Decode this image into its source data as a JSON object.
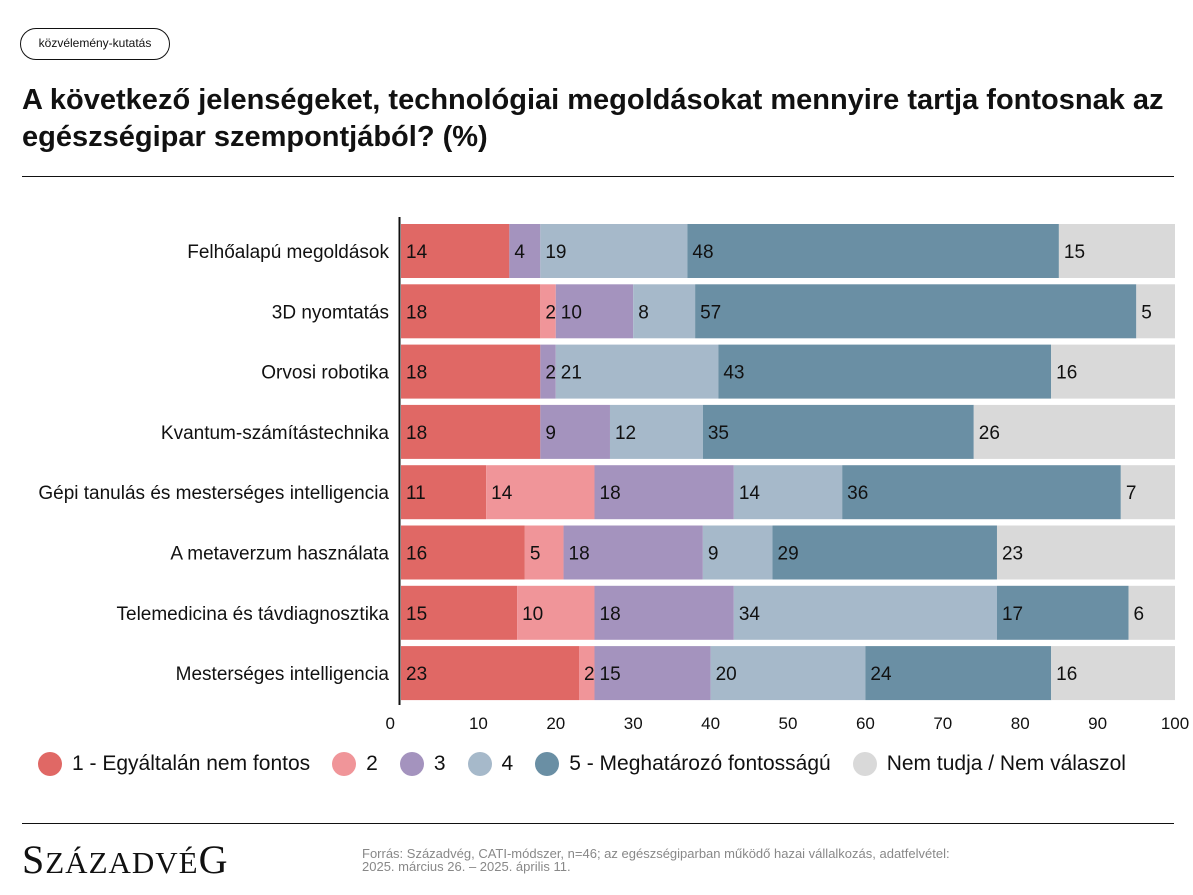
{
  "tag": "közvélemény-kutatás",
  "title": "A következő jelenségeket, technológiai megoldásokat mennyire tartja fontosnak az egészségipar szempontjából? (%)",
  "logo": {
    "first": "S",
    "middle": "ZÁZADVÉ",
    "last": "G"
  },
  "source": {
    "line1": "Forrás: Századvég, CATI-módszer, n=46; az egészségiparban működő hazai vállalkozás, adatfelvétel:",
    "line2": "2025. március 26. – 2025. április 11."
  },
  "chart_data": {
    "type": "bar",
    "orientation": "horizontal",
    "stacked": true,
    "xlim": [
      0,
      100
    ],
    "xticks": [
      0,
      10,
      20,
      30,
      40,
      50,
      60,
      70,
      80,
      90,
      100
    ],
    "categories": [
      "Felhőalapú megoldások",
      "3D nyomtatás",
      "Orvosi robotika",
      "Kvantum-számítástechnika",
      "Gépi tanulás és mesterséges intelligencia",
      "A metaverzum használata",
      "Telemedicina és távdiagnosztika",
      "Mesterséges intelligencia"
    ],
    "series": [
      {
        "name": "1 - Egyáltalán nem fontos",
        "color": "#e06865",
        "values": [
          14,
          18,
          18,
          18,
          11,
          16,
          15,
          23
        ]
      },
      {
        "name": "2",
        "color": "#f09599",
        "values": [
          0,
          2,
          0,
          0,
          14,
          5,
          10,
          2
        ]
      },
      {
        "name": "3",
        "color": "#a493be",
        "values": [
          4,
          10,
          2,
          9,
          18,
          18,
          18,
          15
        ]
      },
      {
        "name": "4",
        "color": "#a6b9ca",
        "values": [
          19,
          8,
          21,
          12,
          14,
          9,
          34,
          20
        ]
      },
      {
        "name": "5 - Meghatározó fontosságú",
        "color": "#6a8fa4",
        "values": [
          48,
          57,
          43,
          35,
          36,
          29,
          17,
          24
        ]
      },
      {
        "name": "Nem tudja / Nem válaszol",
        "color": "#d9d9d9",
        "values": [
          15,
          5,
          16,
          26,
          7,
          23,
          6,
          16
        ]
      }
    ],
    "legend_position": "bottom",
    "grid": false
  }
}
